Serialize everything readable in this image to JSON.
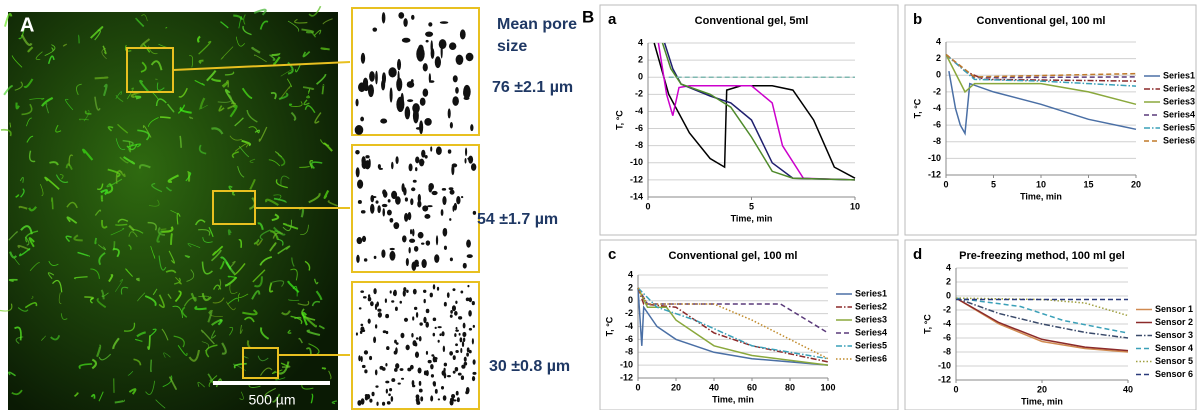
{
  "panel_a": {
    "label": "A",
    "scale_bar": "500 µm",
    "pore_heading": "Mean pore size",
    "pore_sizes": [
      "76 ±2.1 µm",
      "54 ±1.7 µm",
      "30 ±0.8 µm"
    ]
  },
  "panel_b_label": "B",
  "chart_data": [
    {
      "type": "line",
      "label": "a",
      "title": "Conventional gel, 5ml",
      "x_label": "Time, min",
      "y_label": "T, °C",
      "xlim": [
        0,
        10
      ],
      "xticks": [
        0,
        5,
        10
      ],
      "ylim": [
        -14,
        4
      ],
      "yticks": [
        -14,
        -12,
        -10,
        -8,
        -6,
        -4,
        -2,
        0,
        2,
        4
      ],
      "grid": true,
      "series": [
        {
          "color": "#000000",
          "style": "solid",
          "x": [
            0.3,
            1,
            2,
            3,
            3.7,
            3.8,
            4.5,
            6,
            7,
            8,
            9,
            10
          ],
          "values": [
            4,
            -2,
            -6.5,
            -9.5,
            -10.5,
            -1.5,
            -1,
            -1,
            -1.5,
            -5,
            -10.5,
            -11.8
          ]
        },
        {
          "color": "#cc00cc",
          "style": "solid",
          "x": [
            0.5,
            0.9,
            1.2,
            1.5,
            2,
            5,
            6,
            6.5,
            7.5,
            10
          ],
          "values": [
            4,
            -2,
            -4.5,
            -1.2,
            -1,
            -1,
            -3,
            -8,
            -11.8,
            -12
          ]
        },
        {
          "color": "#1f1f6e",
          "style": "solid",
          "x": [
            0.8,
            1.2,
            1.6,
            3,
            4,
            5,
            6,
            7,
            10
          ],
          "values": [
            4,
            1,
            -0.8,
            -2.2,
            -3,
            -5,
            -10,
            -11.8,
            -12
          ]
        },
        {
          "color": "#4f8a2b",
          "style": "solid",
          "x": [
            0.7,
            1.1,
            1.6,
            3,
            4,
            5,
            6,
            7,
            10
          ],
          "values": [
            4,
            1,
            -0.8,
            -2,
            -3.5,
            -7,
            -11,
            -11.8,
            -12
          ]
        },
        {
          "color": "#7fb8b0",
          "style": "dashed",
          "x": [
            1,
            10
          ],
          "values": [
            0,
            0
          ]
        }
      ]
    },
    {
      "type": "line",
      "label": "b",
      "title": "Conventional gel, 100 ml",
      "x_label": "Time, min",
      "y_label": "T, °C",
      "xlim": [
        0,
        20
      ],
      "xticks": [
        0,
        5,
        10,
        15,
        20
      ],
      "ylim": [
        -12,
        4
      ],
      "yticks": [
        -12,
        -10,
        -8,
        -6,
        -4,
        -2,
        0,
        2,
        4
      ],
      "grid": true,
      "legend": "right",
      "series": [
        {
          "name": "Series1",
          "color": "#4a6fa5",
          "style": "solid",
          "x": [
            0.3,
            1,
            1.5,
            2,
            2.5,
            5,
            10,
            15,
            20
          ],
          "values": [
            0.5,
            -4,
            -6,
            -7,
            -1,
            -2,
            -3.5,
            -5.3,
            -6.5
          ]
        },
        {
          "name": "Series2",
          "color": "#8b2a2a",
          "style": "dashdot",
          "x": [
            0,
            2,
            4,
            20
          ],
          "values": [
            2.5,
            0.5,
            -0.5,
            -0.7
          ]
        },
        {
          "name": "Series3",
          "color": "#8aa83c",
          "style": "solid",
          "x": [
            0,
            2,
            3,
            10,
            15,
            20
          ],
          "values": [
            2.5,
            -2,
            -1,
            -1,
            -2,
            -3.5
          ]
        },
        {
          "name": "Series4",
          "color": "#5a3a7a",
          "style": "dashed",
          "x": [
            0,
            3,
            20
          ],
          "values": [
            2.5,
            -0.3,
            -0.2
          ]
        },
        {
          "name": "Series5",
          "color": "#3aa0b8",
          "style": "dashdot",
          "x": [
            0,
            3,
            10,
            20
          ],
          "values": [
            2.5,
            -0.5,
            -0.7,
            -1.3
          ]
        },
        {
          "name": "Series6",
          "color": "#c07a2a",
          "style": "dashed",
          "x": [
            0,
            3,
            20
          ],
          "values": [
            2.5,
            -0.2,
            0.2
          ]
        }
      ]
    },
    {
      "type": "line",
      "label": "c",
      "title": "Conventional gel, 100 ml",
      "x_label": "Time, min",
      "y_label": "T, °C",
      "xlim": [
        0,
        100
      ],
      "xticks": [
        0,
        20,
        40,
        60,
        80,
        100
      ],
      "ylim": [
        -12,
        4
      ],
      "yticks": [
        -12,
        -10,
        -8,
        -6,
        -4,
        -2,
        0,
        2,
        4
      ],
      "grid": true,
      "legend": "right",
      "series": [
        {
          "name": "Series1",
          "color": "#4a6fa5",
          "style": "solid",
          "x": [
            0,
            2,
            3,
            10,
            20,
            40,
            60,
            100
          ],
          "values": [
            2,
            -7,
            -1,
            -4,
            -6,
            -8,
            -9,
            -10
          ]
        },
        {
          "name": "Series2",
          "color": "#8b2a2a",
          "style": "dashdot",
          "x": [
            0,
            3,
            20,
            40,
            60,
            100
          ],
          "values": [
            2,
            -0.5,
            -1,
            -5,
            -7,
            -9.5
          ]
        },
        {
          "name": "Series3",
          "color": "#8aa83c",
          "style": "solid",
          "x": [
            0,
            5,
            15,
            20,
            40,
            60,
            100
          ],
          "values": [
            2,
            -1,
            -1,
            -3,
            -7,
            -8.5,
            -10
          ]
        },
        {
          "name": "Series4",
          "color": "#5a3a7a",
          "style": "dashed",
          "x": [
            0,
            5,
            75,
            100
          ],
          "values": [
            2,
            -0.5,
            -0.5,
            -5
          ]
        },
        {
          "name": "Series5",
          "color": "#3aa0b8",
          "style": "dashdot",
          "x": [
            0,
            10,
            30,
            60,
            100
          ],
          "values": [
            2,
            -1,
            -3,
            -7,
            -9
          ]
        },
        {
          "name": "Series6",
          "color": "#c08a2a",
          "style": "dotted",
          "x": [
            0,
            5,
            40,
            60,
            80,
            100
          ],
          "values": [
            2,
            -0.5,
            -0.5,
            -3,
            -6,
            -9
          ]
        }
      ]
    },
    {
      "type": "line",
      "label": "d",
      "title": "Pre-freezing method, 100 ml gel",
      "x_label": "Time, min",
      "y_label": "T, °C",
      "xlim": [
        0,
        40
      ],
      "xticks": [
        0,
        20,
        40
      ],
      "ylim": [
        -12,
        4
      ],
      "yticks": [
        -12,
        -10,
        -8,
        -6,
        -4,
        -2,
        0,
        2,
        4
      ],
      "grid": true,
      "legend": "right",
      "series": [
        {
          "name": "Sensor 1",
          "color": "#d08a50",
          "style": "solid",
          "x": [
            0,
            10,
            20,
            30,
            40
          ],
          "values": [
            -0.3,
            -4,
            -6.5,
            -7.5,
            -8
          ]
        },
        {
          "name": "Sensor 2",
          "color": "#8b2a2a",
          "style": "solid",
          "x": [
            0,
            10,
            20,
            30,
            40
          ],
          "values": [
            -0.3,
            -3.8,
            -6.2,
            -7.3,
            -7.8
          ]
        },
        {
          "name": "Sensor 3",
          "color": "#3a4a6a",
          "style": "dashdot",
          "x": [
            0,
            10,
            20,
            30,
            40
          ],
          "values": [
            -0.3,
            -2.5,
            -4,
            -5.2,
            -6
          ]
        },
        {
          "name": "Sensor 4",
          "color": "#3aa0b8",
          "style": "dashed",
          "x": [
            0,
            15,
            25,
            40
          ],
          "values": [
            -0.3,
            -1.5,
            -3.5,
            -5.3
          ]
        },
        {
          "name": "Sensor 5",
          "color": "#a0a040",
          "style": "dotted",
          "x": [
            0,
            20,
            30,
            40
          ],
          "values": [
            -0.3,
            -0.5,
            -1,
            -2.8
          ]
        },
        {
          "name": "Sensor 6",
          "color": "#2a3a7a",
          "style": "dashed",
          "x": [
            0,
            40
          ],
          "values": [
            -0.5,
            -0.5
          ]
        }
      ]
    }
  ]
}
